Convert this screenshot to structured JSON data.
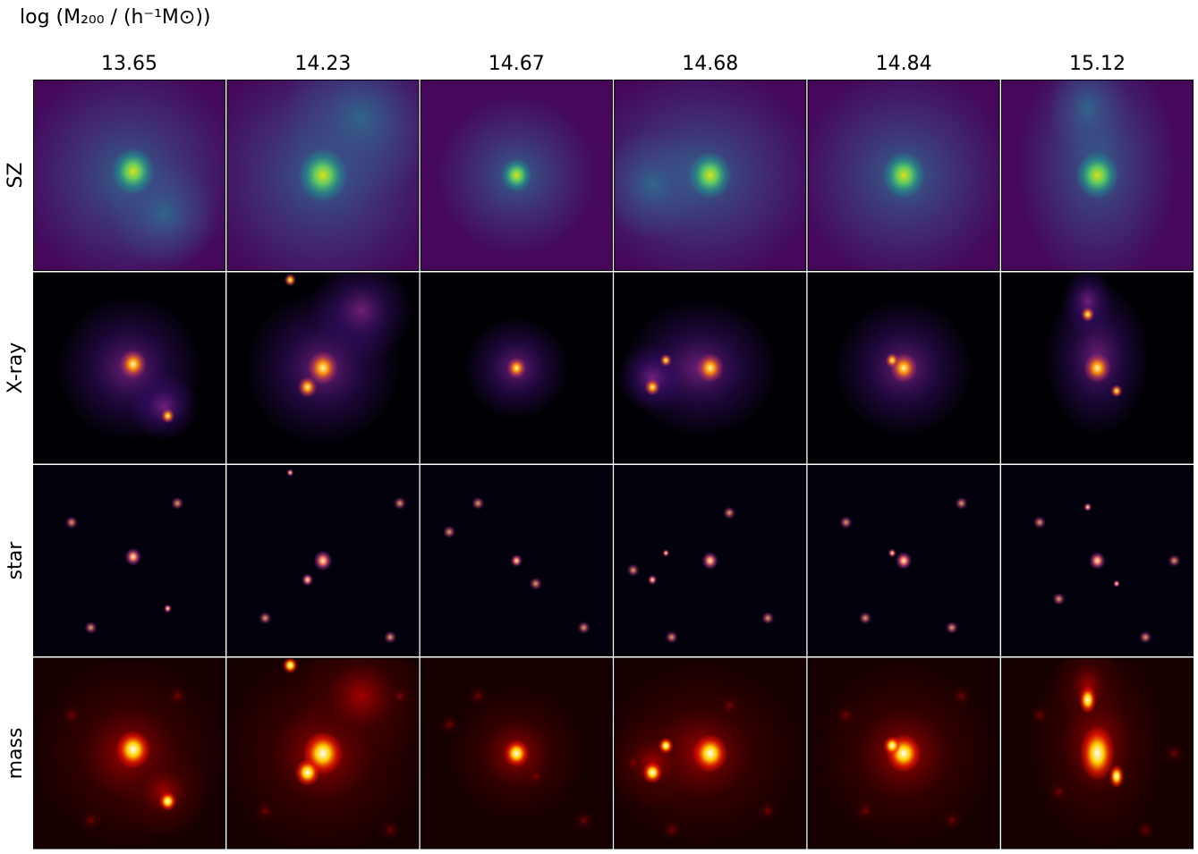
{
  "header": {
    "title": "log (M₂₀₀ / (h⁻¹M⊙))"
  },
  "columns": [
    "13.65",
    "14.23",
    "14.67",
    "14.68",
    "14.84",
    "15.12"
  ],
  "rows": [
    "SZ",
    "X-ray",
    "star",
    "mass"
  ]
}
